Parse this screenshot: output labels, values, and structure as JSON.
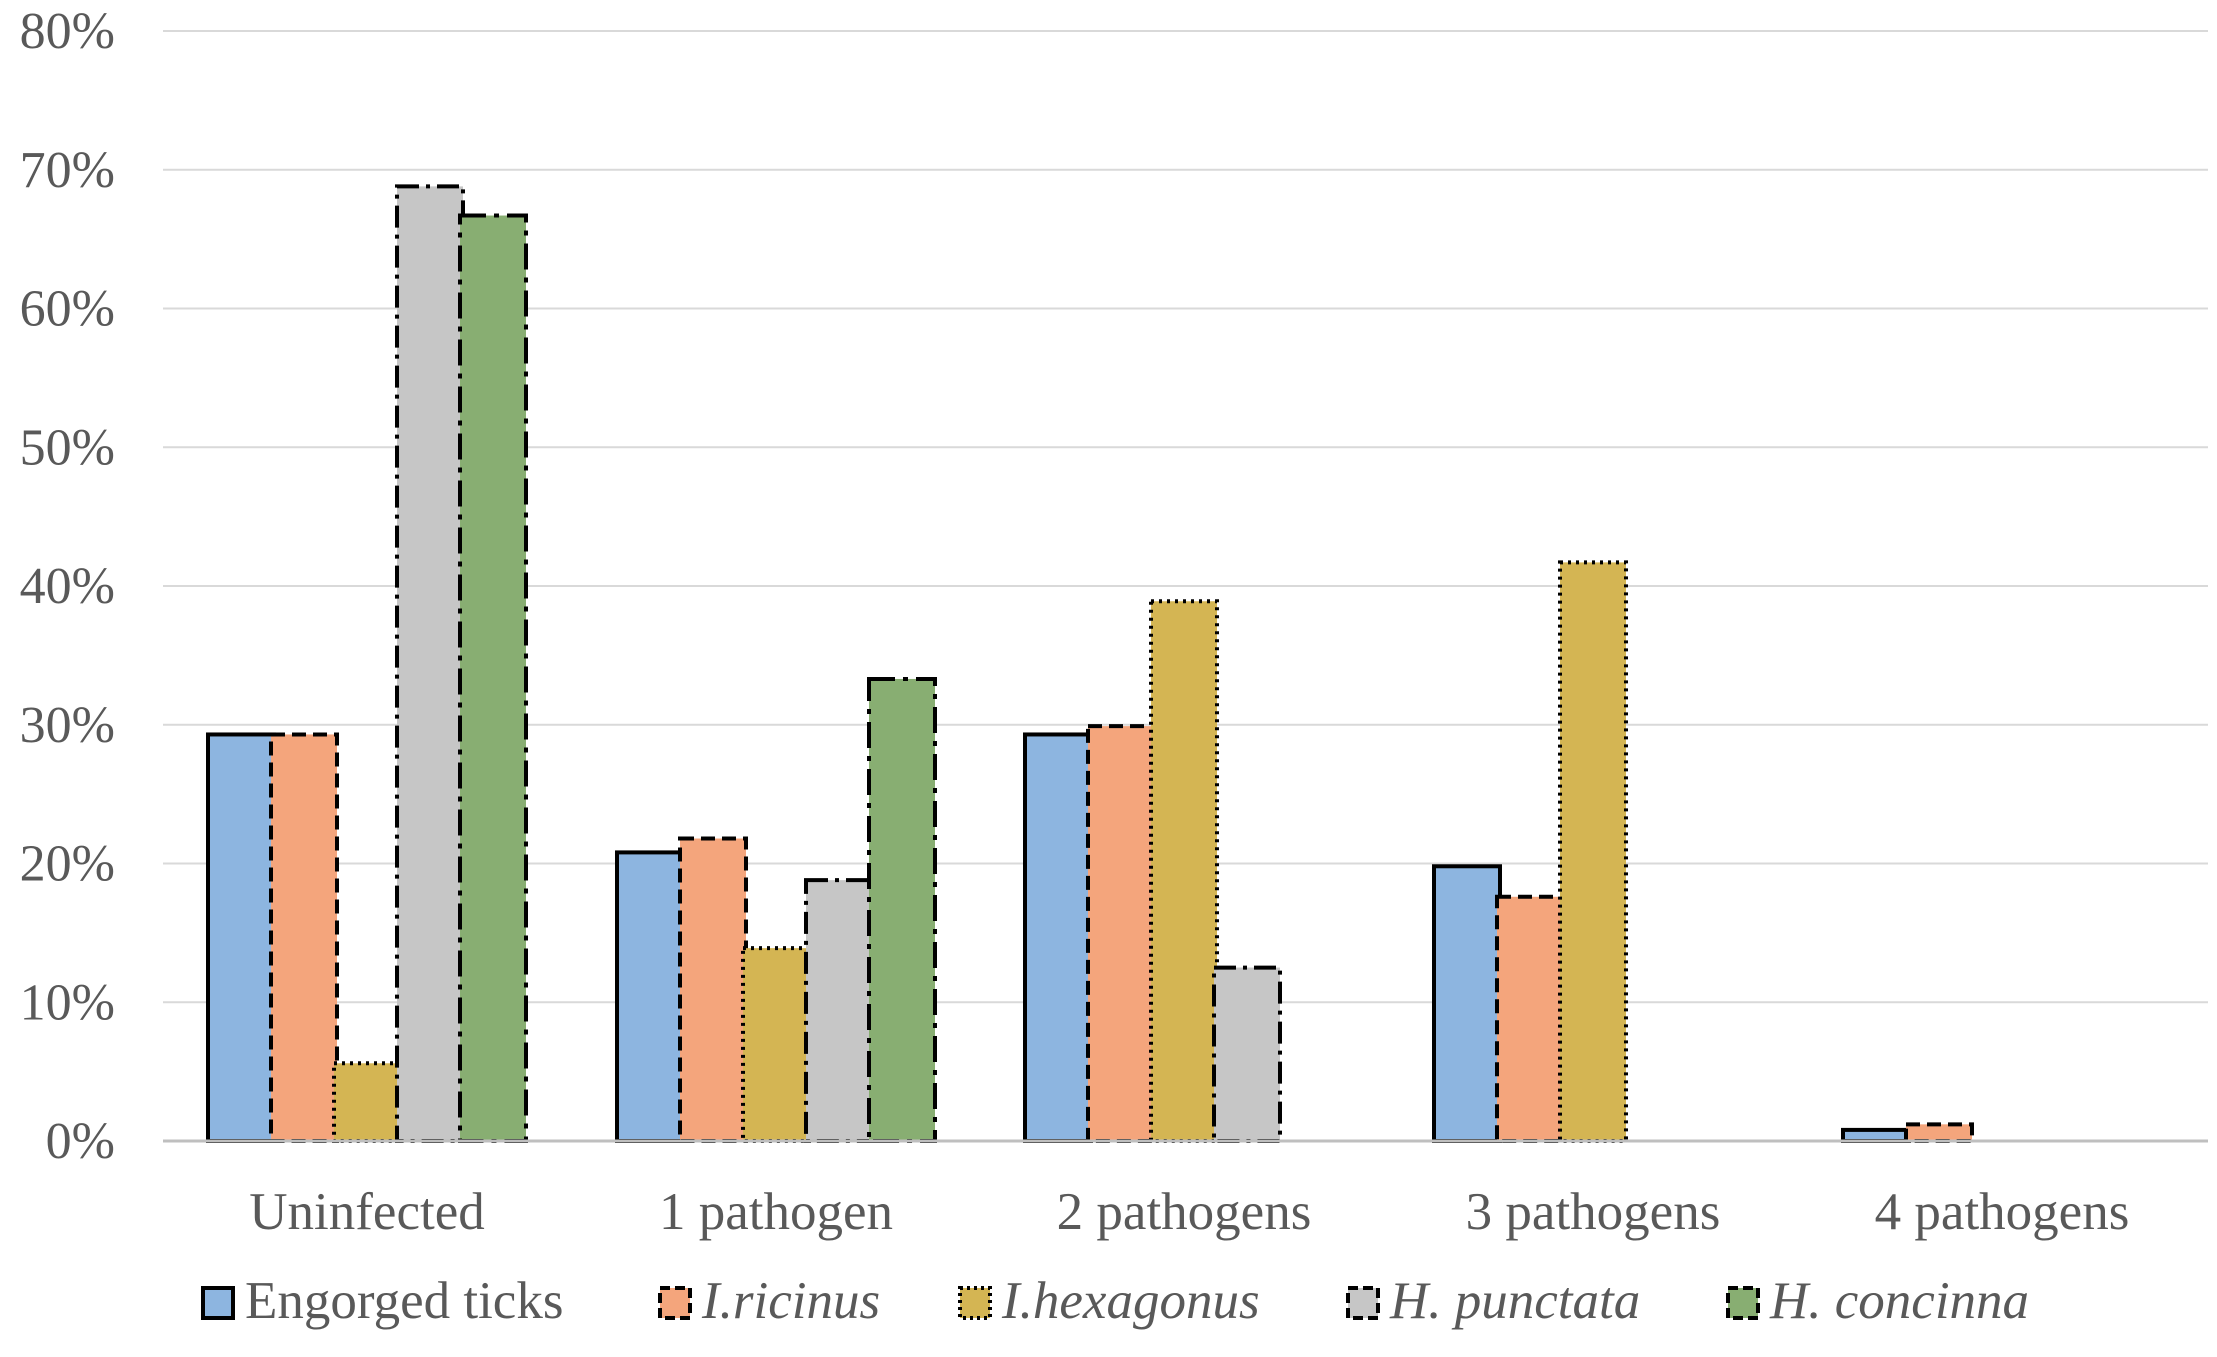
{
  "chart_data": {
    "type": "bar",
    "title": "",
    "xlabel": "",
    "ylabel": "",
    "categories": [
      "Uninfected",
      "1 pathogen",
      "2 pathogens",
      "3 pathogens",
      "4 pathogens"
    ],
    "ylim": [
      0,
      80
    ],
    "yticks": [
      0,
      10,
      20,
      30,
      40,
      50,
      60,
      70,
      80
    ],
    "ytick_labels": [
      "0%",
      "10%",
      "20%",
      "30%",
      "40%",
      "50%",
      "60%",
      "70%",
      "80%"
    ],
    "grid": true,
    "legend_position": "bottom",
    "series": [
      {
        "name": "Engorged ticks",
        "italic": false,
        "color": "#8DB5E0",
        "border": "solid",
        "values": [
          29.3,
          20.8,
          29.3,
          19.8,
          0.8
        ]
      },
      {
        "name": "I.ricinus",
        "italic": true,
        "color": "#F4A57C",
        "border": "dashed",
        "values": [
          29.3,
          21.8,
          29.9,
          17.6,
          1.2
        ]
      },
      {
        "name": "I.hexagonus",
        "italic": true,
        "color": "#D4B553",
        "border": "dotted",
        "values": [
          5.6,
          13.9,
          38.9,
          41.7,
          null
        ]
      },
      {
        "name": "H. punctata",
        "italic": true,
        "color": "#C6C6C6",
        "border": "dashdot",
        "values": [
          68.8,
          18.8,
          12.5,
          null,
          null
        ]
      },
      {
        "name": "H. concinna",
        "italic": true,
        "color": "#88AE72",
        "border": "longdashdot",
        "values": [
          66.7,
          33.3,
          null,
          null,
          null
        ]
      }
    ]
  }
}
